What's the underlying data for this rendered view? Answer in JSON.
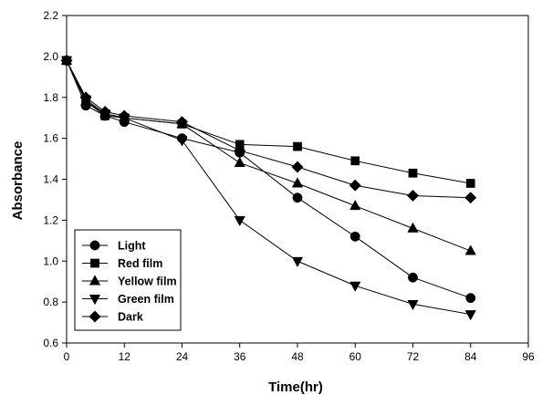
{
  "chart_data": {
    "type": "line",
    "xlabel": "Time(hr)",
    "ylabel": "Absorbance",
    "xlim": [
      0,
      96
    ],
    "ylim": [
      0.6,
      2.2
    ],
    "xticks": [
      0,
      12,
      24,
      36,
      48,
      60,
      72,
      84,
      96
    ],
    "yticks": [
      0.6,
      0.8,
      1.0,
      1.2,
      1.4,
      1.6,
      1.8,
      2.0,
      2.2
    ],
    "ytick_labels": [
      "0.6",
      "0.8",
      "1.0",
      "1.2",
      "1.4",
      "1.6",
      "1.8",
      "2.0",
      "2.2"
    ],
    "grid": false,
    "legend_position": "bottom-left",
    "x": [
      0,
      4,
      8,
      12,
      24,
      36,
      48,
      60,
      72,
      84
    ],
    "series": [
      {
        "name": "Light",
        "marker": "circle",
        "color": "#000000",
        "values": [
          1.98,
          1.76,
          1.71,
          1.68,
          1.6,
          1.53,
          1.31,
          1.12,
          0.92,
          0.82
        ]
      },
      {
        "name": "Red film",
        "marker": "square",
        "color": "#000000",
        "values": [
          1.98,
          1.78,
          1.71,
          1.7,
          1.67,
          1.57,
          1.56,
          1.49,
          1.43,
          1.38
        ]
      },
      {
        "name": "Yellow film",
        "marker": "triangle-up",
        "color": "#000000",
        "values": [
          1.98,
          1.78,
          1.72,
          1.7,
          1.67,
          1.48,
          1.38,
          1.27,
          1.16,
          1.05
        ]
      },
      {
        "name": "Green film",
        "marker": "triangle-down",
        "color": "#000000",
        "values": [
          1.98,
          1.79,
          1.72,
          1.7,
          1.59,
          1.2,
          1.0,
          0.88,
          0.79,
          0.74
        ]
      },
      {
        "name": "Dark",
        "marker": "diamond",
        "color": "#000000",
        "values": [
          1.98,
          1.8,
          1.73,
          1.71,
          1.68,
          1.54,
          1.46,
          1.37,
          1.32,
          1.31
        ]
      }
    ]
  }
}
